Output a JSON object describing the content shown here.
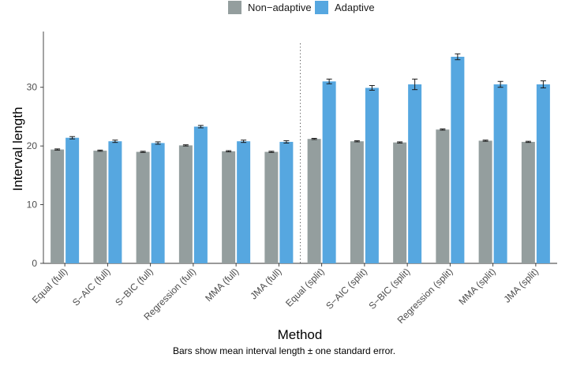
{
  "chart_data": {
    "type": "bar",
    "title": "",
    "xlabel": "Method",
    "ylabel": "Interval length",
    "caption": "Bars show mean interval length ± one standard error.",
    "ylim": [
      0,
      39.5
    ],
    "yticks": [
      0,
      10,
      20,
      30
    ],
    "grid": false,
    "legend_position": "top",
    "separator_after_category": 6,
    "categories": [
      "Equal (full)",
      "S−AIC (full)",
      "S−BIC (full)",
      "Regression (full)",
      "MMA (full)",
      "JMA (full)",
      "Equal (split)",
      "S−AIC (split)",
      "S−BIC (split)",
      "Regression (split)",
      "MMA (split)",
      "JMA (split)"
    ],
    "series": [
      {
        "name": "Non−adaptive",
        "color": "#949e9e",
        "values": [
          19.4,
          19.2,
          19.0,
          20.1,
          19.1,
          19.0,
          21.2,
          20.8,
          20.6,
          22.8,
          20.9,
          20.7
        ],
        "se": [
          0.1,
          0.1,
          0.1,
          0.1,
          0.1,
          0.1,
          0.1,
          0.1,
          0.1,
          0.1,
          0.1,
          0.1
        ]
      },
      {
        "name": "Adaptive",
        "color": "#56a7e0",
        "values": [
          21.4,
          20.8,
          20.5,
          23.3,
          20.8,
          20.7,
          31.0,
          29.9,
          30.5,
          35.2,
          30.5,
          30.5
        ],
        "se": [
          0.2,
          0.2,
          0.2,
          0.2,
          0.2,
          0.2,
          0.4,
          0.4,
          0.9,
          0.5,
          0.5,
          0.6
        ]
      }
    ]
  }
}
